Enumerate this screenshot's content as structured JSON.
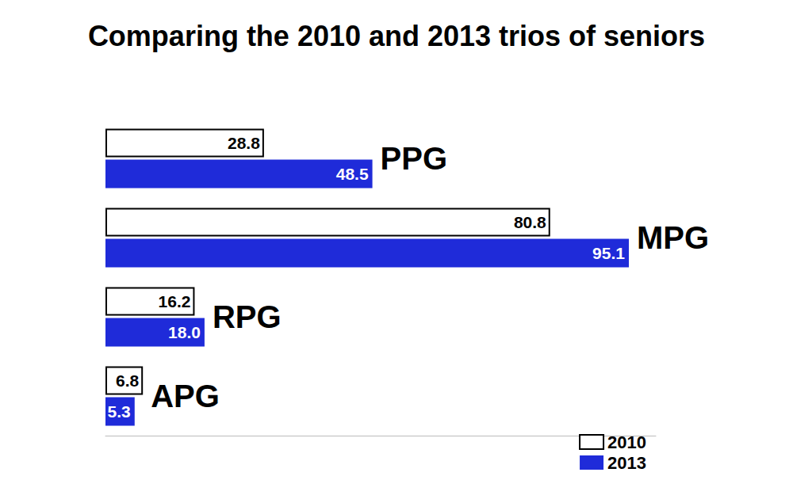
{
  "chart_data": {
    "type": "bar",
    "orientation": "horizontal",
    "title": "Comparing the 2010 and 2013 trios of seniors",
    "categories": [
      "PPG",
      "MPG",
      "RPG",
      "APG"
    ],
    "series": [
      {
        "name": "2010",
        "color": "#ffffff",
        "values": [
          28.8,
          80.8,
          16.2,
          6.8
        ],
        "value_labels": [
          "28.8",
          "80.8",
          "16.2",
          "6.8"
        ]
      },
      {
        "name": "2013",
        "color": "#1f2bd9",
        "values": [
          48.5,
          95.1,
          18.0,
          5.3
        ],
        "value_labels": [
          "48.5",
          "95.1",
          "18.0",
          "5.3"
        ]
      }
    ],
    "xlim": [
      0,
      100
    ],
    "data_labels": true,
    "tick_labels": false,
    "grid": false,
    "legend": "bottom-right"
  }
}
